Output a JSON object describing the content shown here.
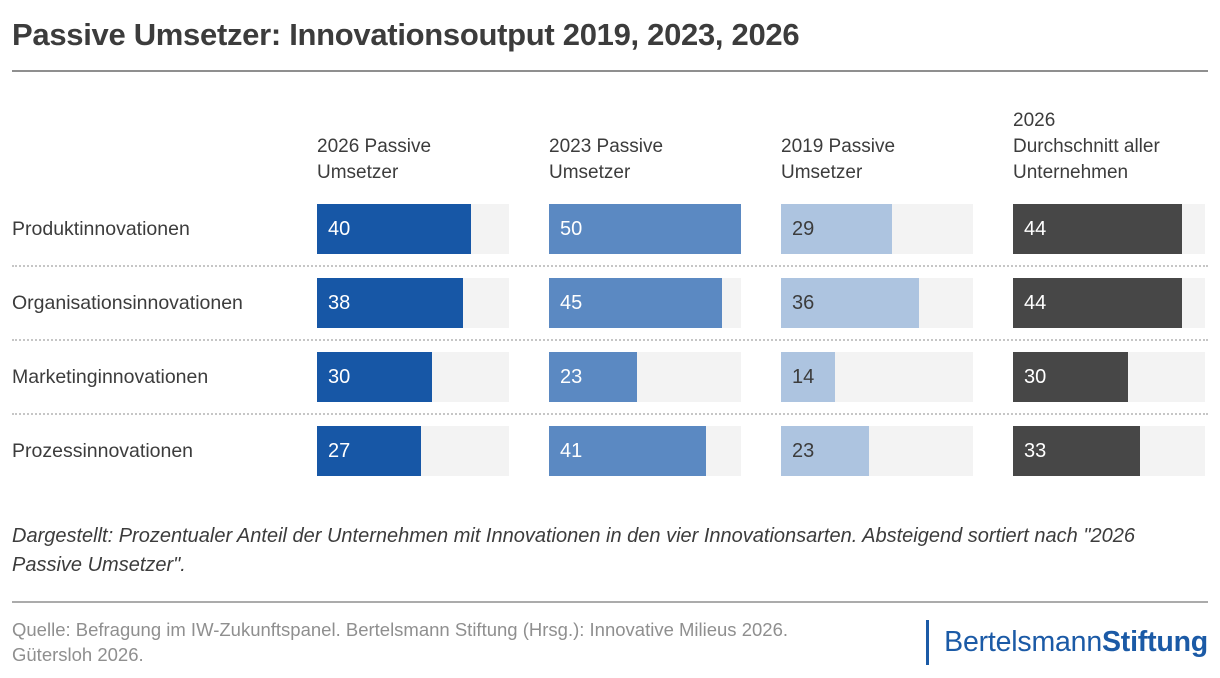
{
  "title": "Passive Umsetzer: Innovationsoutput 2019, 2023, 2026",
  "chart_data": {
    "type": "bar",
    "orientation": "horizontal",
    "unit": "percent",
    "value_axis_max": 50,
    "grid": false,
    "legend_position": "top-column-headers",
    "track_color": "#f3f3f3",
    "categories": [
      "Produktinnovationen",
      "Organisationsinnovationen",
      "Marketinginnovationen",
      "Prozessinnovationen"
    ],
    "series": [
      {
        "name": "2026 Passive Umsetzer",
        "header_lines": [
          "2026 Passive",
          "Umsetzer"
        ],
        "color": "#1757a6",
        "label_color": "#ffffff",
        "values": [
          40,
          38,
          30,
          27
        ]
      },
      {
        "name": "2023 Passive Umsetzer",
        "header_lines": [
          "2023 Passive",
          "Umsetzer"
        ],
        "color": "#5b89c2",
        "label_color": "#ffffff",
        "values": [
          50,
          45,
          23,
          41
        ]
      },
      {
        "name": "2019 Passive Umsetzer",
        "header_lines": [
          "2019 Passive",
          "Umsetzer"
        ],
        "color": "#adc4e0",
        "label_color": "#3c3c3c",
        "values": [
          29,
          36,
          14,
          23
        ]
      },
      {
        "name": "2026 Durchschnitt aller Unternehmen",
        "header_lines": [
          "2026",
          "Durchschnitt aller",
          "Unternehmen"
        ],
        "color": "#474747",
        "label_color": "#ffffff",
        "values": [
          44,
          44,
          30,
          33
        ]
      }
    ]
  },
  "footnote": "Dargestellt: Prozentualer Anteil der Unternehmen mit Innovationen in den vier Innovationsarten. Absteigend sortiert nach \"2026 Passive Umsetzer\".",
  "source": "Quelle: Befragung im IW-Zukunftspanel. Bertelsmann Stiftung (Hrsg.): Innovative Milieus 2026. Gütersloh 2026.",
  "logo": {
    "text_regular": "Bertelsmann",
    "text_bold": "Stiftung"
  },
  "colors": {
    "logo_blue": "#1b5aa6",
    "rule_gray": "#8f8f8f",
    "text_gray": "#8f8f8f"
  }
}
